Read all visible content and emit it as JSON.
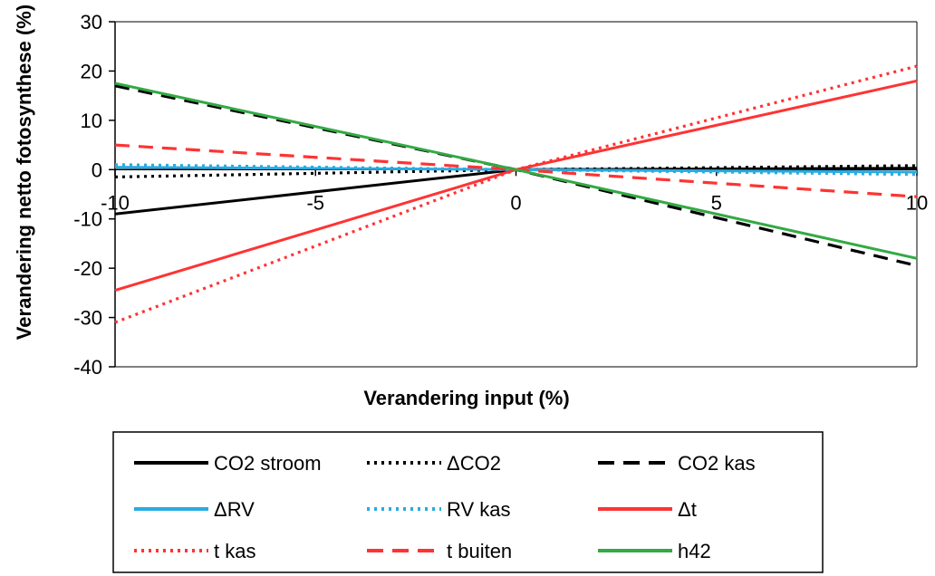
{
  "chart_data": {
    "type": "line",
    "title": "",
    "xlabel": "Verandering input (%)",
    "ylabel": "Verandering netto fotosynthese (%)",
    "xlim": [
      -10,
      10
    ],
    "ylim": [
      -40,
      30
    ],
    "xticks": [
      -10,
      -5,
      0,
      5,
      10
    ],
    "yticks": [
      -40,
      -30,
      -20,
      -10,
      0,
      10,
      20,
      30
    ],
    "grid": false,
    "legend_position": "bottom",
    "series": [
      {
        "name": "CO2 stroom",
        "color": "#000000",
        "style": "solid",
        "x": [
          -10,
          0,
          10
        ],
        "y": [
          -9,
          0,
          0.3
        ]
      },
      {
        "name": "ΔCO2",
        "color": "#000000",
        "style": "dotted",
        "x": [
          -10,
          0,
          10
        ],
        "y": [
          -1.5,
          0,
          0.8
        ]
      },
      {
        "name": "CO2 kas",
        "color": "#000000",
        "style": "dashed",
        "x": [
          -10,
          0,
          10
        ],
        "y": [
          17,
          0,
          -19.5
        ]
      },
      {
        "name": "ΔRV",
        "color": "#29abe2",
        "style": "solid",
        "x": [
          -10,
          0,
          10
        ],
        "y": [
          0.5,
          0,
          -0.5
        ]
      },
      {
        "name": "RV kas",
        "color": "#29abe2",
        "style": "dotted",
        "x": [
          -10,
          0,
          10
        ],
        "y": [
          1,
          0,
          -1
        ]
      },
      {
        "name": "Δt",
        "color": "#ff3333",
        "style": "solid",
        "x": [
          -10,
          0,
          10
        ],
        "y": [
          -24.5,
          0,
          18
        ]
      },
      {
        "name": "t kas",
        "color": "#ff3333",
        "style": "dotted",
        "x": [
          -10,
          0,
          10
        ],
        "y": [
          -31,
          0,
          21
        ]
      },
      {
        "name": "t buiten",
        "color": "#ff3333",
        "style": "dashed",
        "x": [
          -10,
          0,
          10
        ],
        "y": [
          5,
          0,
          -5.5
        ]
      },
      {
        "name": "h42",
        "color": "#33aa44",
        "style": "solid",
        "x": [
          -10,
          0,
          10
        ],
        "y": [
          17.5,
          0,
          -18
        ]
      }
    ]
  }
}
